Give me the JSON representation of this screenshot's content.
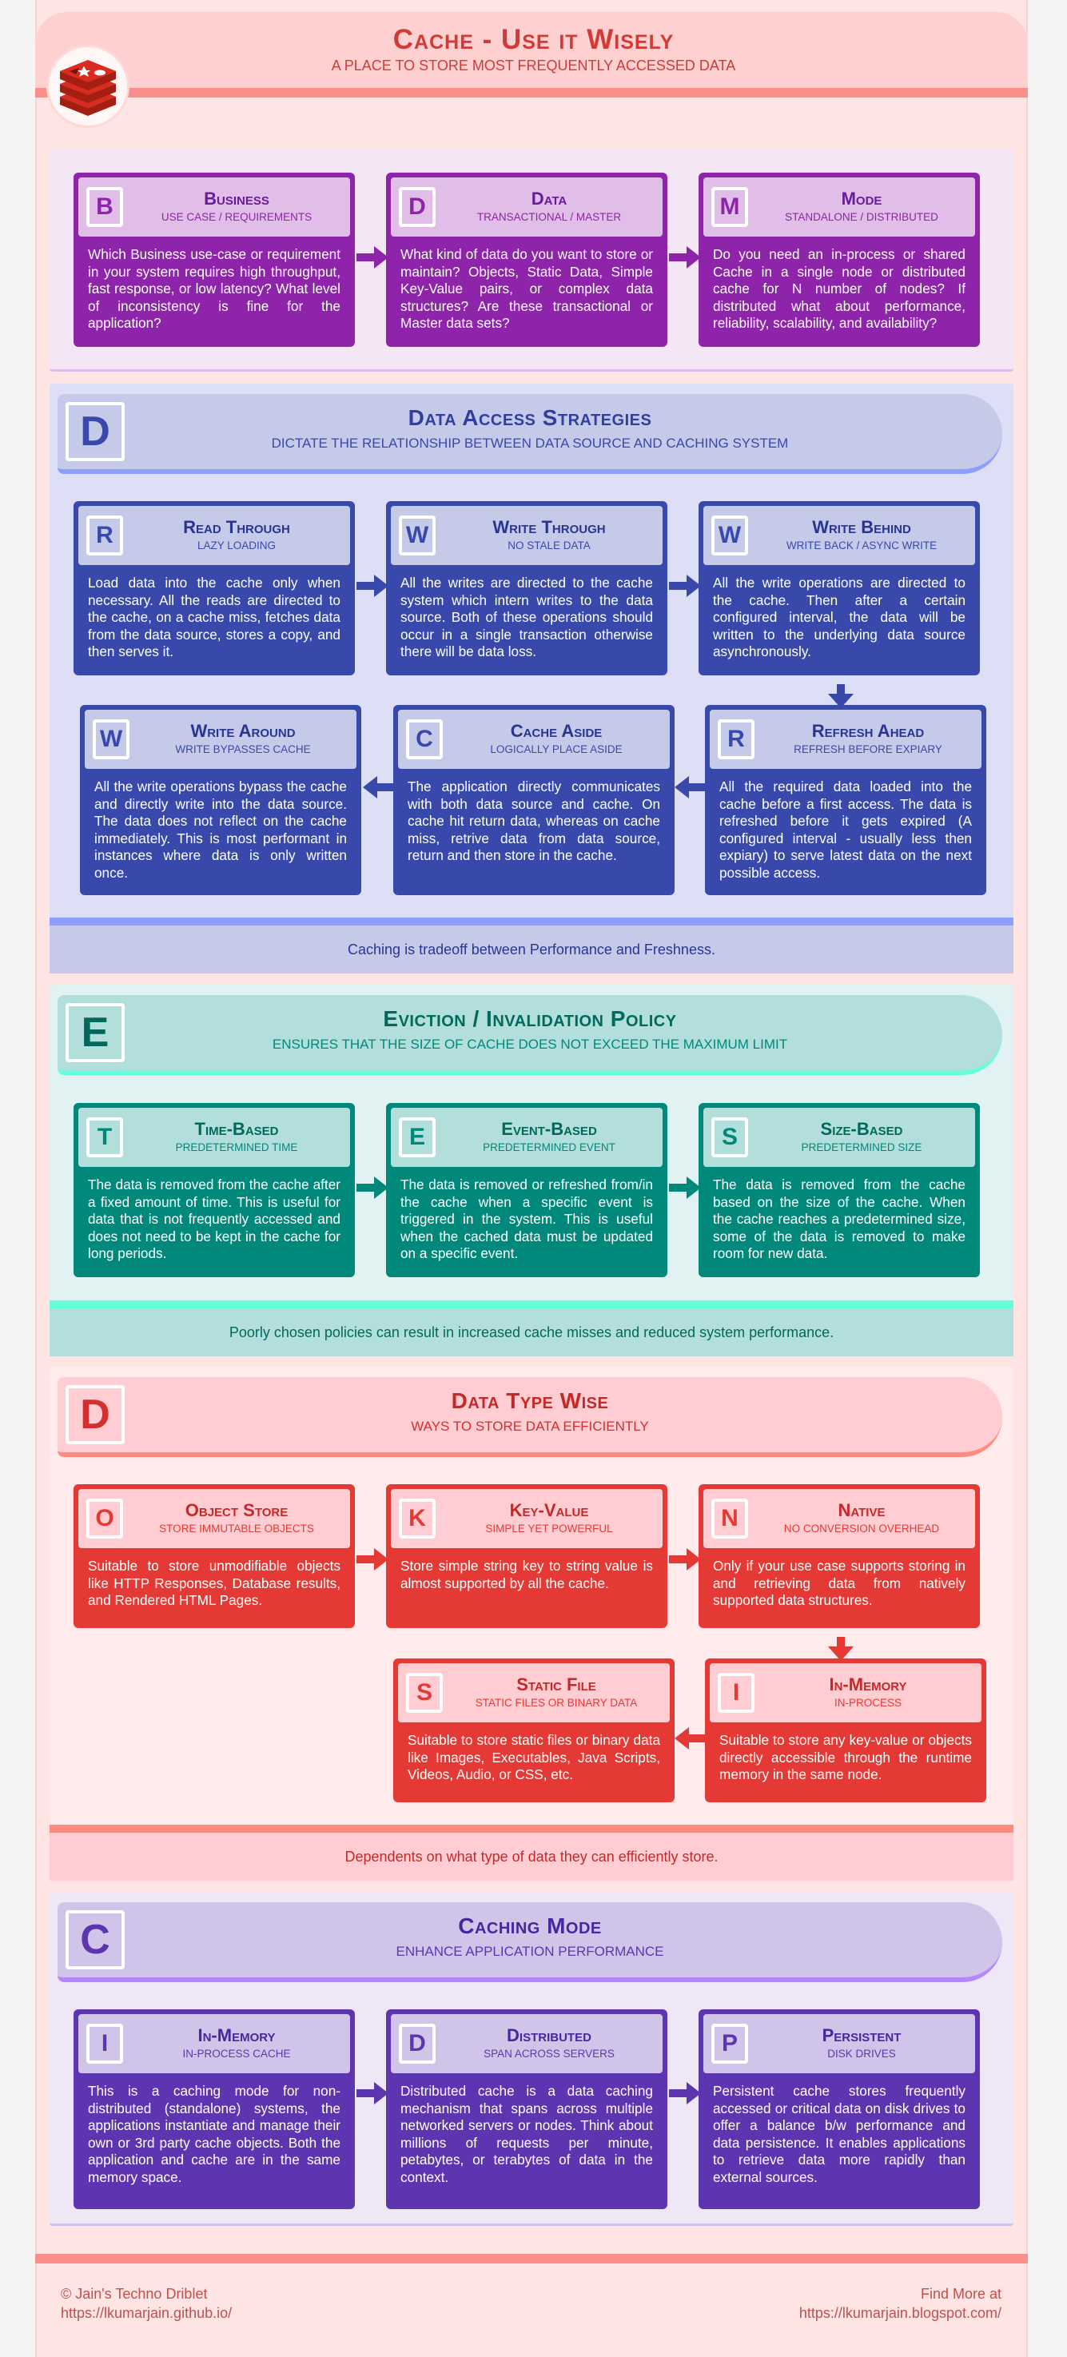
{
  "header": {
    "title": "Cache - Use it Wisely",
    "subtitle": "A PLACE TO STORE MOST FREQUENTLY ACCESSED DATA"
  },
  "colors": {
    "business": "#8e24aa",
    "access": "#3949ab",
    "eviction": "#00897b",
    "datatype": "#e53935",
    "mode": "#5e35b1"
  },
  "bdm": {
    "cards": [
      {
        "letter": "B",
        "title": "Business",
        "sub": "USE CASE / REQUIREMENTS",
        "body": "Which Business use-case or requirement in your system requires high throughput, fast response, or low latency? What level of inconsistency is fine for the application?"
      },
      {
        "letter": "D",
        "title": "Data",
        "sub": "TRANSACTIONAL / MASTER",
        "body": "What kind of data do you want to store or maintain? Objects, Static Data, Simple Key-Value pairs, or complex data structures? Are these transactional or Master data sets?"
      },
      {
        "letter": "M",
        "title": "Mode",
        "sub": "STANDALONE / DISTRIBUTED",
        "body": "Do you need an in-process or shared Cache in a single node or distributed cache for N number of nodes? If distributed what about performance, reliability, scalability, and availability?"
      }
    ]
  },
  "access": {
    "letter": "D",
    "title": "Data Access Strategies",
    "sub": "DICTATE THE RELATIONSHIP BETWEEN DATA SOURCE AND CACHING SYSTEM",
    "note": "Caching is tradeoff between Performance and Freshness.",
    "cards": [
      {
        "letter": "R",
        "title": "Read Through",
        "sub": "LAZY LOADING",
        "body": "Load data into the cache only when necessary. All the reads are directed to the cache, on a cache miss, fetches data from the data source, stores a copy, and then serves it."
      },
      {
        "letter": "W",
        "title": "Write Through",
        "sub": "NO STALE DATA",
        "body": "All the writes are directed to the cache system which intern writes to the data source. Both of these operations should occur in a single transaction otherwise there will be data loss."
      },
      {
        "letter": "W",
        "title": "Write Behind",
        "sub": "WRITE BACK / ASYNC WRITE",
        "body": "All the write operations are directed to the cache. Then after a certain configured interval, the data will be written to the underlying data source asynchronously."
      },
      {
        "letter": "W",
        "title": "Write Around",
        "sub": "WRITE BYPASSES CACHE",
        "body": "All the write operations bypass the cache and directly write into the data source. The data does not reflect on the cache immediately. This is most performant in instances where data is only written once."
      },
      {
        "letter": "C",
        "title": "Cache Aside",
        "sub": "LOGICALLY PLACE ASIDE",
        "body": "The application directly communicates with both data source and cache. On cache hit return data, whereas on cache miss, retrive data from data source, return and then store in the cache."
      },
      {
        "letter": "R",
        "title": "Refresh Ahead",
        "sub": "REFRESH BEFORE EXPIARY",
        "body": "All the required data loaded into the cache before a first access. The data is refreshed before it gets expired (A configured interval - usually less then expiary) to serve latest data on the next possible access."
      }
    ]
  },
  "eviction": {
    "letter": "E",
    "title": "Eviction / Invalidation Policy",
    "sub": "ENSURES THAT THE SIZE OF CACHE DOES NOT EXCEED THE MAXIMUM LIMIT",
    "note": "Poorly chosen policies can result in increased cache misses and reduced system performance.",
    "cards": [
      {
        "letter": "T",
        "title": "Time-Based",
        "sub": "PREDETERMINED TIME",
        "body": "The data is removed from the cache after a fixed amount of time. This is useful for data that is not frequently accessed and does not need to be kept in the cache for long periods."
      },
      {
        "letter": "E",
        "title": "Event-Based",
        "sub": "PREDETERMINED EVENT",
        "body": "The data is removed or refreshed from/in the cache when a specific event is triggered in the system. This is useful when the cached data must be updated on a specific event."
      },
      {
        "letter": "S",
        "title": "Size-Based",
        "sub": "PREDETERMINED SIZE",
        "body": "The data is removed from the cache based on the size of the cache. When the cache reaches a predetermined size, some of the data is removed to make room for new data."
      }
    ]
  },
  "datatype": {
    "letter": "D",
    "title": "Data Type Wise",
    "sub": "WAYS TO STORE DATA EFFICIENTLY",
    "note": "Dependents on what type of data they can efficiently store.",
    "cards": [
      {
        "letter": "O",
        "title": "Object Store",
        "sub": "STORE IMMUTABLE OBJECTS",
        "body": "Suitable to store unmodifiable objects like HTTP Responses, Database results, and Rendered HTML Pages."
      },
      {
        "letter": "K",
        "title": "Key-Value",
        "sub": "SIMPLE YET POWERFUL",
        "body": "Store simple string key to string value is almost supported by all the cache."
      },
      {
        "letter": "N",
        "title": "Native",
        "sub": "NO CONVERSION OVERHEAD",
        "body": "Only if your use case supports storing in and retrieving data from natively supported data structures."
      },
      {
        "letter": "S",
        "title": "Static File",
        "sub": "STATIC FILES OR BINARY DATA",
        "body": "Suitable to store static files or binary data like Images, Executables, Java Scripts, Videos, Audio, or CSS, etc."
      },
      {
        "letter": "I",
        "title": "In-Memory",
        "sub": "IN-PROCESS",
        "body": "Suitable to store any key-value or objects directly accessible through the runtime memory in the same node."
      }
    ]
  },
  "mode": {
    "letter": "C",
    "title": "Caching Mode",
    "sub": "ENHANCE APPLICATION PERFORMANCE",
    "cards": [
      {
        "letter": "I",
        "title": "In-Memory",
        "sub": "IN-PROCESS CACHE",
        "body": "This is a caching mode for non-distributed (standalone) systems, the applications instantiate and manage their own or 3rd party cache objects. Both the application and cache are in the same memory space."
      },
      {
        "letter": "D",
        "title": "Distributed",
        "sub": "SPAN ACROSS SERVERS",
        "body": "Distributed cache is a data caching mechanism that spans across multiple networked servers or nodes. Think about millions of requests per minute, petabytes, or terabytes of data in the context."
      },
      {
        "letter": "P",
        "title": "Persistent",
        "sub": "DISK DRIVES",
        "body": "Persistent cache stores frequently accessed or critical data on disk drives to offer a balance b/w performance and data persistence. It enables applications to retrieve data more rapidly than external sources."
      }
    ]
  },
  "footer": {
    "left1": "© Jain's Techno Driblet",
    "left2": "https://lkumarjain.github.io/",
    "right1": "Find More at",
    "right2": "https://lkumarjain.blogspot.com/"
  }
}
